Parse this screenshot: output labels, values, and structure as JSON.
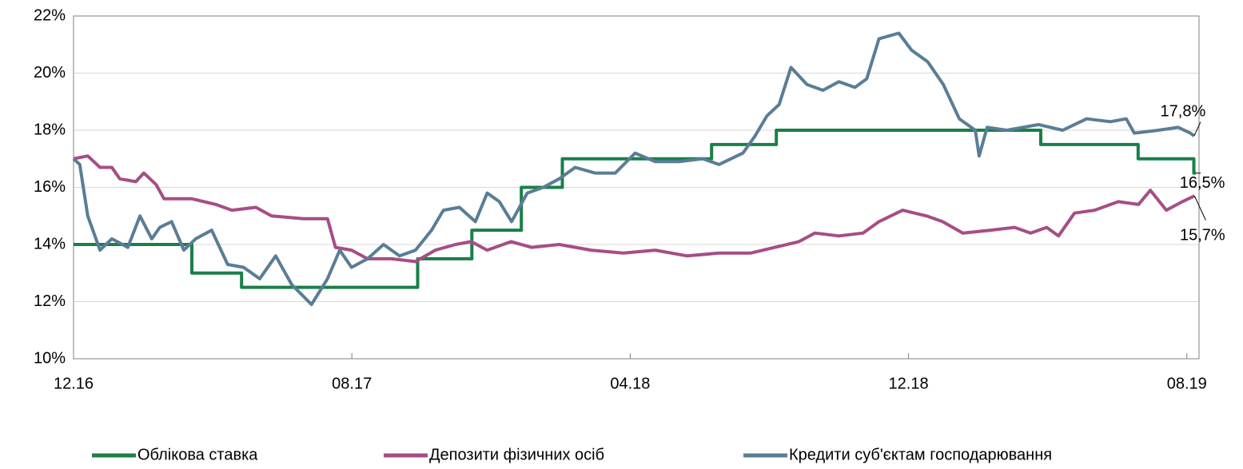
{
  "chart_data": {
    "type": "line",
    "xlim": [
      0,
      32.35
    ],
    "xticks": [
      {
        "value": 0,
        "label": "12.16"
      },
      {
        "value": 8,
        "label": "08.17"
      },
      {
        "value": 16,
        "label": "04.18"
      },
      {
        "value": 24,
        "label": "12.18"
      },
      {
        "value": 32,
        "label": "08.19"
      }
    ],
    "ylim": [
      10,
      22
    ],
    "yticks": [
      {
        "value": 10,
        "label": "10%"
      },
      {
        "value": 12,
        "label": "12%"
      },
      {
        "value": 14,
        "label": "14%"
      },
      {
        "value": 16,
        "label": "16%"
      },
      {
        "value": 18,
        "label": "18%"
      },
      {
        "value": 20,
        "label": "20%"
      },
      {
        "value": 22,
        "label": "22%"
      }
    ],
    "grid": true,
    "legend": "bottom",
    "series": [
      {
        "name": "Облікова ставка",
        "color": "#1a7f48",
        "x": [
          0,
          3.4,
          3.4,
          4.83,
          4.83,
          9.89,
          9.89,
          11.45,
          11.45,
          12.87,
          12.87,
          14.05,
          14.05,
          18.34,
          18.34,
          20.2,
          20.2,
          27.8,
          27.8,
          30.6,
          30.6,
          32.2,
          32.2,
          32.26
        ],
        "values": [
          14,
          14,
          13,
          13,
          12.5,
          12.5,
          13.5,
          13.5,
          14.5,
          14.5,
          16,
          16,
          17,
          17,
          17.5,
          17.5,
          18,
          18,
          17.5,
          17.5,
          17,
          17,
          16.5,
          16.5
        ],
        "end_label": "16,5%"
      },
      {
        "name": "Депозити фізичних осіб",
        "color": "#a64d86",
        "x": [
          0,
          0.41,
          0.76,
          1.1,
          1.33,
          1.79,
          2.02,
          2.37,
          2.6,
          3.4,
          4.09,
          4.55,
          5.24,
          5.69,
          6.61,
          7.3,
          7.53,
          7.99,
          8.45,
          9.14,
          9.83,
          10.4,
          10.98,
          11.43,
          11.89,
          12.58,
          13.16,
          13.96,
          14.88,
          15.8,
          16.72,
          17.64,
          18.55,
          19.47,
          20.16,
          20.85,
          21.31,
          22.0,
          22.69,
          23.15,
          23.83,
          24.52,
          24.98,
          25.56,
          26.36,
          27.05,
          27.51,
          27.97,
          28.31,
          28.77,
          29.35,
          30.03,
          30.61,
          30.95,
          31.41,
          31.87,
          32.22
        ],
        "values": [
          17.0,
          17.1,
          16.7,
          16.7,
          16.3,
          16.2,
          16.5,
          16.1,
          15.6,
          15.6,
          15.4,
          15.2,
          15.3,
          15.0,
          14.9,
          14.9,
          13.9,
          13.8,
          13.5,
          13.5,
          13.4,
          13.8,
          14.0,
          14.1,
          13.8,
          14.1,
          13.9,
          14.0,
          13.8,
          13.7,
          13.8,
          13.6,
          13.7,
          13.7,
          13.9,
          14.1,
          14.4,
          14.3,
          14.4,
          14.8,
          15.2,
          15.0,
          14.8,
          14.4,
          14.5,
          14.6,
          14.4,
          14.6,
          14.3,
          15.1,
          15.2,
          15.5,
          15.4,
          15.9,
          15.2,
          15.5,
          15.7
        ],
        "end_label": "15,7%"
      },
      {
        "name": "Кредити суб'єктам господарювання",
        "color": "#5a7d96",
        "x": [
          0,
          0.18,
          0.41,
          0.76,
          1.1,
          1.56,
          1.91,
          2.25,
          2.48,
          2.82,
          3.17,
          3.51,
          3.97,
          4.43,
          4.89,
          5.35,
          5.81,
          6.27,
          6.84,
          7.3,
          7.65,
          7.99,
          8.45,
          8.91,
          9.37,
          9.83,
          10.29,
          10.63,
          11.09,
          11.55,
          11.89,
          12.24,
          12.59,
          13.04,
          13.5,
          13.96,
          14.42,
          14.99,
          15.57,
          16.14,
          16.72,
          17.41,
          18.09,
          18.55,
          19.24,
          19.59,
          19.93,
          20.28,
          20.62,
          21.08,
          21.54,
          22.0,
          22.46,
          22.8,
          23.15,
          23.72,
          24.09,
          24.55,
          25.0,
          25.46,
          25.92,
          26.03,
          26.26,
          26.82,
          27.74,
          28.43,
          29.12,
          29.8,
          30.26,
          30.49,
          31.18,
          31.75,
          32.1,
          32.21
        ],
        "values": [
          17.0,
          16.8,
          15.0,
          13.8,
          14.2,
          13.9,
          15.0,
          14.2,
          14.6,
          14.8,
          13.8,
          14.2,
          14.5,
          13.3,
          13.2,
          12.8,
          13.6,
          12.6,
          11.9,
          12.8,
          13.8,
          13.2,
          13.5,
          14.0,
          13.6,
          13.8,
          14.5,
          15.2,
          15.3,
          14.8,
          15.8,
          15.5,
          14.8,
          15.8,
          16.0,
          16.3,
          16.7,
          16.5,
          16.5,
          17.2,
          16.9,
          16.9,
          17.0,
          16.8,
          17.2,
          17.8,
          18.5,
          18.9,
          20.2,
          19.6,
          19.4,
          19.7,
          19.5,
          19.8,
          21.2,
          21.4,
          20.8,
          20.4,
          19.6,
          18.4,
          18.0,
          17.1,
          18.1,
          18.0,
          18.2,
          18.0,
          18.4,
          18.3,
          18.4,
          17.9,
          18.0,
          18.1,
          17.9,
          17.8
        ],
        "end_label": "17,8%"
      }
    ]
  }
}
